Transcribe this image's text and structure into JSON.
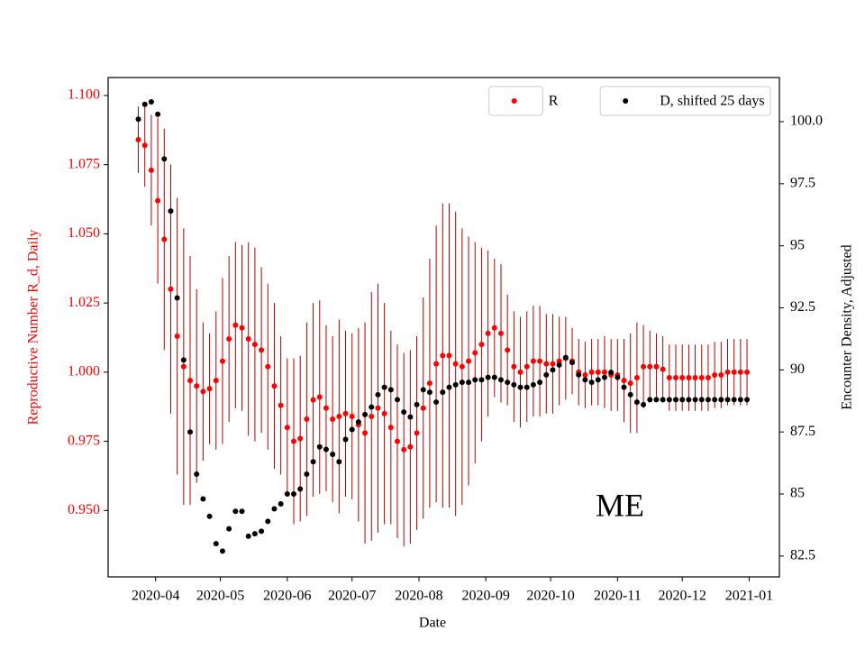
{
  "chart_data": {
    "type": "scatter",
    "xlabel": "Date",
    "ylabel": "Reproductive Number R_d, Daily",
    "y2label": "Encounter Density, Adjusted",
    "annotation": "ME",
    "x": [
      "2020-03-24",
      "2020-03-27",
      "2020-03-30",
      "2020-04-02",
      "2020-04-05",
      "2020-04-08",
      "2020-04-11",
      "2020-04-14",
      "2020-04-17",
      "2020-04-20",
      "2020-04-23",
      "2020-04-26",
      "2020-04-29",
      "2020-05-02",
      "2020-05-05",
      "2020-05-08",
      "2020-05-11",
      "2020-05-14",
      "2020-05-17",
      "2020-05-20",
      "2020-05-23",
      "2020-05-26",
      "2020-05-29",
      "2020-06-01",
      "2020-06-04",
      "2020-06-07",
      "2020-06-10",
      "2020-06-13",
      "2020-06-16",
      "2020-06-19",
      "2020-06-22",
      "2020-06-25",
      "2020-06-28",
      "2020-07-01",
      "2020-07-04",
      "2020-07-07",
      "2020-07-10",
      "2020-07-13",
      "2020-07-16",
      "2020-07-19",
      "2020-07-22",
      "2020-07-25",
      "2020-07-28",
      "2020-07-31",
      "2020-08-03",
      "2020-08-06",
      "2020-08-09",
      "2020-08-12",
      "2020-08-15",
      "2020-08-18",
      "2020-08-21",
      "2020-08-24",
      "2020-08-27",
      "2020-08-30",
      "2020-09-02",
      "2020-09-05",
      "2020-09-08",
      "2020-09-11",
      "2020-09-14",
      "2020-09-17",
      "2020-09-20",
      "2020-09-23",
      "2020-09-26",
      "2020-09-29",
      "2020-10-02",
      "2020-10-05",
      "2020-10-08",
      "2020-10-11",
      "2020-10-14",
      "2020-10-17",
      "2020-10-20",
      "2020-10-23",
      "2020-10-26",
      "2020-10-29",
      "2020-11-01",
      "2020-11-04",
      "2020-11-07",
      "2020-11-10",
      "2020-11-13",
      "2020-11-16",
      "2020-11-19",
      "2020-11-22",
      "2020-11-25",
      "2020-11-28",
      "2020-12-01",
      "2020-12-04",
      "2020-12-07",
      "2020-12-10",
      "2020-12-13",
      "2020-12-16",
      "2020-12-19",
      "2020-12-22",
      "2020-12-25",
      "2020-12-28",
      "2020-12-31"
    ],
    "series": [
      {
        "name": "R",
        "color": "#ff0000",
        "errcolor": "#b00000",
        "axis": "y",
        "legend": "upper center",
        "values": [
          1.084,
          1.082,
          1.073,
          1.062,
          1.048,
          1.03,
          1.013,
          1.002,
          0.997,
          0.995,
          0.993,
          0.994,
          0.997,
          1.004,
          1.012,
          1.017,
          1.016,
          1.012,
          1.01,
          1.008,
          1.002,
          0.995,
          0.988,
          0.98,
          0.975,
          0.976,
          0.983,
          0.99,
          0.991,
          0.987,
          0.983,
          0.984,
          0.985,
          0.984,
          0.981,
          0.978,
          0.984,
          0.987,
          0.985,
          0.98,
          0.975,
          0.972,
          0.973,
          0.978,
          0.987,
          0.996,
          1.003,
          1.006,
          1.006,
          1.003,
          1.002,
          1.004,
          1.007,
          1.01,
          1.014,
          1.016,
          1.014,
          1.008,
          1.002,
          1.0,
          1.002,
          1.004,
          1.004,
          1.003,
          1.003,
          1.004,
          1.005,
          1.004,
          1.0,
          0.999,
          1.0,
          1.0,
          1.0,
          0.999,
          0.999,
          0.997,
          0.996,
          0.998,
          1.002,
          1.002,
          1.002,
          1.001,
          0.998,
          0.998,
          0.998,
          0.998,
          0.998,
          0.998,
          0.998,
          0.999,
          0.999,
          1.0,
          1.0,
          1.0,
          1.0
        ],
        "errors": [
          0.012,
          0.015,
          0.02,
          0.03,
          0.04,
          0.045,
          0.05,
          0.05,
          0.045,
          0.035,
          0.025,
          0.02,
          0.025,
          0.03,
          0.03,
          0.03,
          0.03,
          0.035,
          0.035,
          0.03,
          0.03,
          0.03,
          0.025,
          0.025,
          0.03,
          0.03,
          0.035,
          0.035,
          0.035,
          0.03,
          0.03,
          0.035,
          0.03,
          0.03,
          0.035,
          0.04,
          0.045,
          0.045,
          0.04,
          0.035,
          0.035,
          0.035,
          0.035,
          0.035,
          0.04,
          0.045,
          0.05,
          0.055,
          0.055,
          0.055,
          0.05,
          0.045,
          0.04,
          0.035,
          0.03,
          0.025,
          0.025,
          0.02,
          0.02,
          0.02,
          0.02,
          0.02,
          0.02,
          0.018,
          0.018,
          0.016,
          0.015,
          0.012,
          0.012,
          0.012,
          0.012,
          0.012,
          0.013,
          0.013,
          0.013,
          0.015,
          0.018,
          0.02,
          0.015,
          0.013,
          0.012,
          0.012,
          0.012,
          0.012,
          0.012,
          0.012,
          0.012,
          0.012,
          0.012,
          0.012,
          0.012,
          0.012,
          0.012,
          0.012,
          0.012
        ]
      },
      {
        "name": "D, shifted 25 days",
        "color": "#000000",
        "axis": "y2",
        "legend": "upper right",
        "values": [
          100.1,
          100.7,
          100.8,
          100.3,
          98.5,
          96.4,
          92.9,
          90.4,
          87.5,
          85.8,
          84.8,
          84.1,
          83.0,
          82.7,
          83.6,
          84.3,
          84.3,
          83.3,
          83.4,
          83.5,
          83.9,
          84.4,
          84.6,
          85.0,
          85.0,
          85.2,
          85.8,
          86.3,
          86.9,
          86.8,
          86.6,
          86.3,
          87.2,
          87.6,
          87.9,
          88.2,
          88.5,
          89.0,
          89.3,
          89.2,
          88.8,
          88.3,
          88.1,
          88.6,
          89.2,
          89.1,
          88.7,
          89.1,
          89.3,
          89.4,
          89.5,
          89.5,
          89.6,
          89.6,
          89.7,
          89.7,
          89.6,
          89.5,
          89.4,
          89.3,
          89.3,
          89.4,
          89.5,
          89.8,
          90.0,
          90.2,
          90.5,
          90.3,
          89.8,
          89.6,
          89.5,
          89.6,
          89.7,
          89.9,
          89.7,
          89.3,
          89.0,
          88.7,
          88.6,
          88.8,
          88.8,
          88.8,
          88.8,
          88.8,
          88.8,
          88.8,
          88.8,
          88.8,
          88.8,
          88.8,
          88.8,
          88.8,
          88.8,
          88.8,
          88.8
        ]
      }
    ],
    "xlim": [
      "2020-03-10",
      "2021-01-15"
    ],
    "xticks": [
      {
        "value": "2020-04-01",
        "label": "2020-04"
      },
      {
        "value": "2020-05-01",
        "label": "2020-05"
      },
      {
        "value": "2020-06-01",
        "label": "2020-06"
      },
      {
        "value": "2020-07-01",
        "label": "2020-07"
      },
      {
        "value": "2020-08-01",
        "label": "2020-08"
      },
      {
        "value": "2020-09-01",
        "label": "2020-09"
      },
      {
        "value": "2020-10-01",
        "label": "2020-10"
      },
      {
        "value": "2020-11-01",
        "label": "2020-11"
      },
      {
        "value": "2020-12-01",
        "label": "2020-12"
      },
      {
        "value": "2021-01-01",
        "label": "2021-01"
      }
    ],
    "ylim": [
      0.926,
      1.1065
    ],
    "yticks": [
      {
        "value": 0.95,
        "label": "0.950"
      },
      {
        "value": 0.975,
        "label": "0.975"
      },
      {
        "value": 1.0,
        "label": "1.000"
      },
      {
        "value": 1.025,
        "label": "1.025"
      },
      {
        "value": 1.05,
        "label": "1.050"
      },
      {
        "value": 1.075,
        "label": "1.075"
      },
      {
        "value": 1.1,
        "label": "1.100"
      }
    ],
    "y2lim": [
      81.66,
      101.78
    ],
    "y2ticks": [
      82.5,
      85.0,
      87.5,
      90.0,
      92.5,
      95.0,
      97.5,
      {
        "value": 100,
        "label": "100.0"
      }
    ],
    "ycolor": "#ff0000"
  }
}
